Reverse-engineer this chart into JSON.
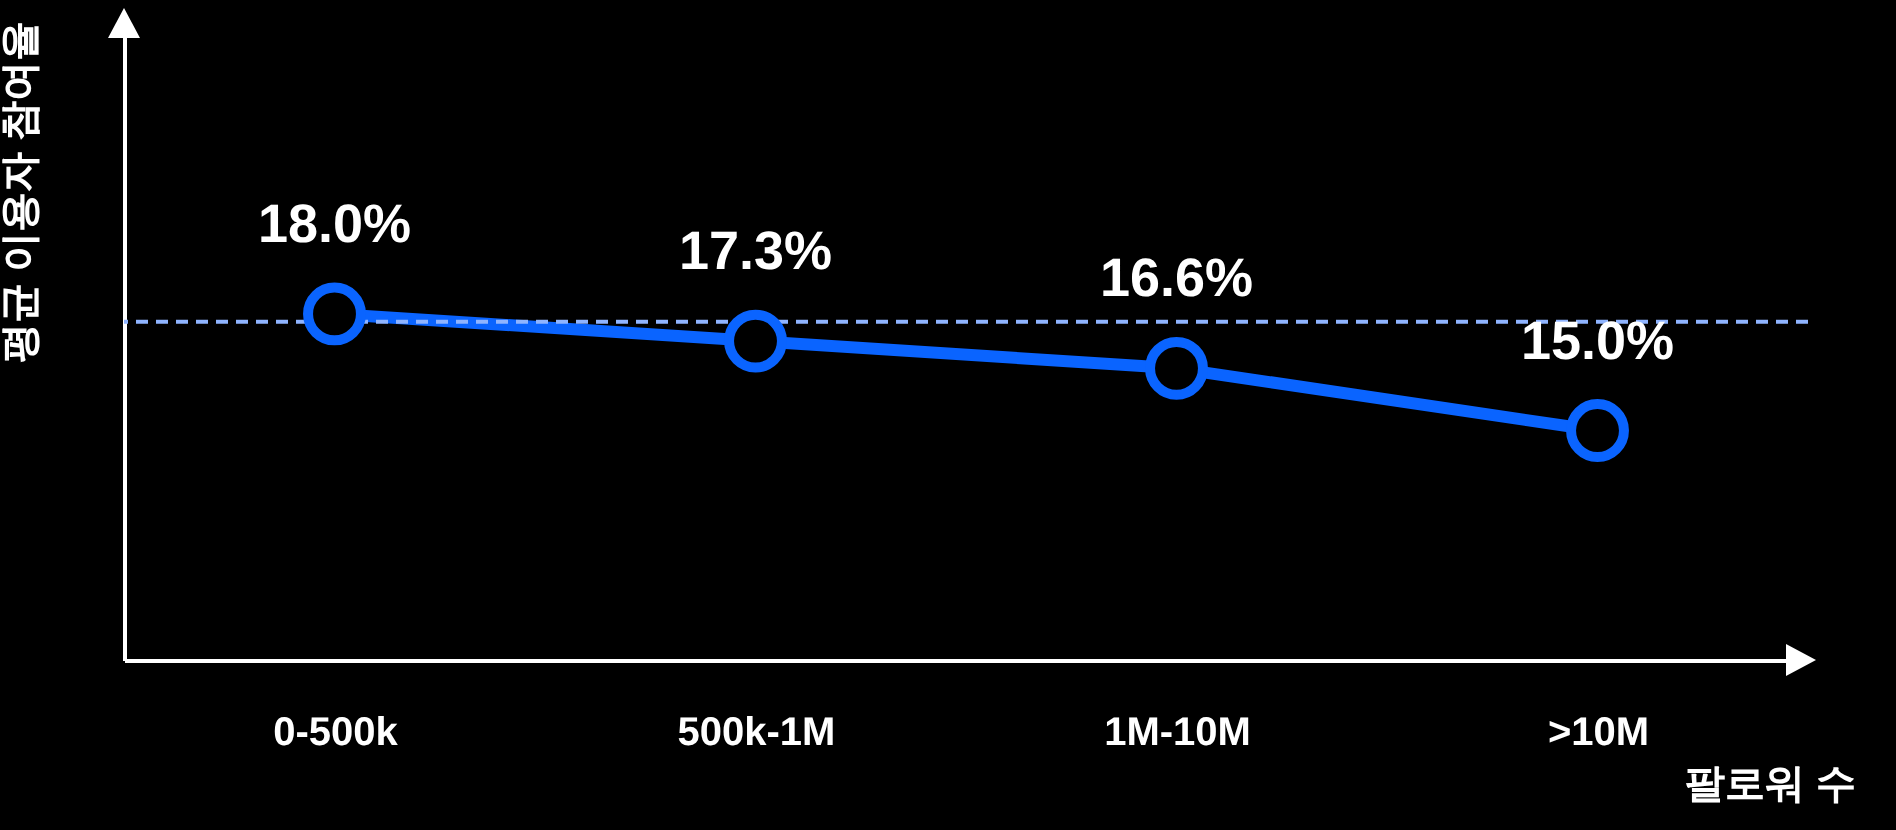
{
  "chart_data": {
    "type": "line",
    "xlabel": "팔로워 수",
    "ylabel": "평균 이용자 참여율",
    "categories": [
      "0-500k",
      "500k-1M",
      "1M-10M",
      ">10M"
    ],
    "series": [
      {
        "color": "#0a64ff",
        "values": [
          18.0,
          17.3,
          16.6,
          15.0
        ],
        "value_labels": [
          "18.0%",
          "17.3%",
          "16.6%",
          "15.0%"
        ]
      }
    ],
    "ylim": [
      9.1,
      25.3
    ],
    "tick_labels": "x",
    "grid": false,
    "marker": "circle",
    "line_style": "solid",
    "ref_lines": [
      {
        "axis": "y",
        "value": 17.8,
        "color": "#8fb4ff",
        "line_style": "dashed"
      }
    ]
  }
}
